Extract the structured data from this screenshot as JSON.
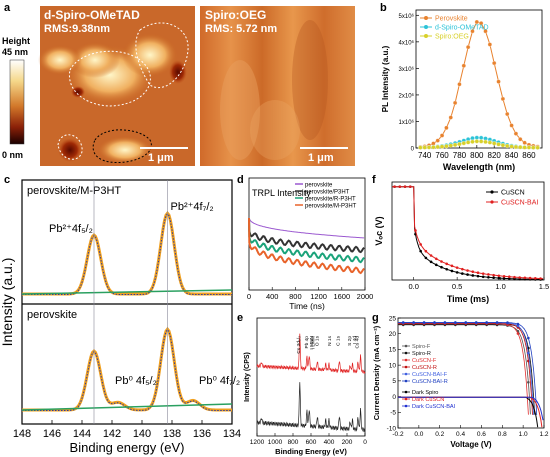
{
  "panels": {
    "a": {
      "label": "a",
      "left_title": "d-Spiro-OMeTAD",
      "left_rms": "RMS:9.38nm",
      "right_title": "Spiro:OEG",
      "right_rms": "RMS: 5.72 nm",
      "scale_left": "1 μm",
      "scale_right": "1 μm",
      "colorbar_title": "Height",
      "colorbar_max": "45 nm",
      "colorbar_min": "0 nm"
    },
    "b": {
      "label": "b"
    },
    "c": {
      "label": "c",
      "top_title": "perovskite/M-P3HT",
      "bottom_title": "perovskite"
    },
    "d": {
      "label": "d"
    },
    "e": {
      "label": "e"
    },
    "f": {
      "label": "f"
    },
    "g": {
      "label": "g"
    }
  },
  "chart_data": [
    {
      "id": "b",
      "type": "line",
      "xlabel": "Wavelength (nm)",
      "ylabel": "PL Intensity (a.u.)",
      "xlim": [
        730,
        875
      ],
      "ylim": [
        0,
        5200000
      ],
      "xticks": [
        740,
        760,
        780,
        800,
        820,
        840,
        860
      ],
      "yticks": [
        0,
        1000000,
        2000000,
        3000000,
        4000000,
        5000000
      ],
      "ytick_labels": [
        "0",
        "1x10⁶",
        "2x10⁶",
        "3x10⁶",
        "4x10⁶",
        "5x10⁶"
      ],
      "legend": "top-left",
      "x": [
        735,
        740,
        745,
        750,
        755,
        760,
        765,
        770,
        775,
        780,
        785,
        790,
        795,
        800,
        805,
        810,
        815,
        820,
        825,
        830,
        835,
        840,
        845,
        850,
        855,
        860,
        865,
        870
      ],
      "series": [
        {
          "name": "Perovskite",
          "color": "#e8822e",
          "values": [
            40000,
            60000,
            100000,
            170000,
            280000,
            470000,
            760000,
            1150000,
            1700000,
            2400000,
            3100000,
            3800000,
            4400000,
            4750000,
            4700000,
            4400000,
            3900000,
            3200000,
            2500000,
            1850000,
            1280000,
            850000,
            540000,
            330000,
            200000,
            120000,
            80000,
            50000
          ]
        },
        {
          "name": "d-Spiro-OMeTAD",
          "color": "#2cc3d8",
          "values": [
            20000,
            25000,
            30000,
            40000,
            55000,
            75000,
            105000,
            140000,
            185000,
            230000,
            280000,
            330000,
            370000,
            390000,
            385000,
            360000,
            320000,
            270000,
            215000,
            165000,
            120000,
            85000,
            60000,
            40000,
            30000,
            22000,
            18000,
            15000
          ]
        },
        {
          "name": "Spiro:OEG",
          "color": "#d8d02a",
          "values": [
            15000,
            18000,
            22000,
            28000,
            38000,
            50000,
            68000,
            90000,
            118000,
            148000,
            180000,
            210000,
            235000,
            250000,
            247000,
            230000,
            205000,
            172000,
            138000,
            105000,
            78000,
            55000,
            40000,
            28000,
            21000,
            17000,
            14000,
            12000
          ]
        }
      ]
    },
    {
      "id": "c",
      "type": "line",
      "xlabel": "Binding energy (eV)",
      "ylabel": "Intensity (a.u.)",
      "xlim": [
        148,
        134
      ],
      "xticks": [
        148,
        146,
        144,
        142,
        140,
        138,
        136,
        134
      ],
      "top_peak_labels": [
        "Pb²⁺4f₅/₂",
        "Pb²⁺4f₇/₂"
      ],
      "bottom_peak_labels": [
        "Pb⁰ 4f₅/₂",
        "Pb⁰ 4f₇/₂"
      ],
      "top_peaks_ev": [
        143.2,
        138.3
      ],
      "bottom_peaks_ev": [
        143.2,
        138.3
      ],
      "bottom_metal_peaks_ev": [
        141.6,
        136.6
      ]
    },
    {
      "id": "d",
      "type": "line",
      "xlabel": "Time (ns)",
      "ylabel": "TRPL Intensity",
      "xlim": [
        0,
        2000
      ],
      "xticks": [
        0,
        400,
        800,
        1200,
        1600,
        2000
      ],
      "legend": "top-right",
      "series": [
        {
          "name": "perovskite",
          "color": "#9b59d0"
        },
        {
          "name": "perovskite/P3HT",
          "color": "#333333"
        },
        {
          "name": "perovskite/R-P3HT",
          "color": "#1aa37a"
        },
        {
          "name": "perovskite/M-P3HT",
          "color": "#e8632a"
        }
      ]
    },
    {
      "id": "e",
      "type": "line",
      "xlabel": "Binding Energy (eV)",
      "ylabel": "Intensity (CPS)",
      "xlim": [
        1200,
        0
      ],
      "xticks": [
        1200,
        1000,
        800,
        600,
        400,
        200,
        0
      ],
      "peak_labels": [
        "Cs 3d₅/₂",
        "Pb 4p",
        "I MNN",
        "I LMM",
        "O 1s",
        "N 1s",
        "C 1s",
        "S 2p",
        "I 4d",
        "Cs 4d"
      ]
    },
    {
      "id": "f",
      "type": "line",
      "xlabel": "Time (ms)",
      "ylabel": "Vₒc (V)",
      "xlim": [
        -0.25,
        1.5
      ],
      "ylim": [
        0,
        1.05
      ],
      "xticks": [
        0.0,
        0.5,
        1.0,
        1.5
      ],
      "legend": "top-right",
      "series": [
        {
          "name": "CuSCN",
          "color": "#000000"
        },
        {
          "name": "CuSCN-BAI",
          "color": "#e02020"
        }
      ]
    },
    {
      "id": "g",
      "type": "line",
      "xlabel": "Voltage (V)",
      "ylabel": "Current Density (mA cm⁻²)",
      "xlim": [
        -0.2,
        1.2
      ],
      "ylim": [
        -10,
        25
      ],
      "xticks": [
        -0.2,
        0.0,
        0.2,
        0.4,
        0.6,
        0.8,
        1.0,
        1.2
      ],
      "yticks": [
        -10,
        -5,
        0,
        5,
        10,
        15,
        20,
        25
      ],
      "legend": "left",
      "series": [
        {
          "name": "Spiro-F",
          "color": "#555555"
        },
        {
          "name": "Spiro-R",
          "color": "#111111"
        },
        {
          "name": "CuSCN-F",
          "color": "#e03030"
        },
        {
          "name": "CuSCN-R",
          "color": "#c01010"
        },
        {
          "name": "CuSCN-BAI-F",
          "color": "#4060e0"
        },
        {
          "name": "CuSCN-BAI-R",
          "color": "#2040c0"
        },
        {
          "name": "Dark Spiro",
          "color": "#000000"
        },
        {
          "name": "Dark CuSCN",
          "color": "#e02020"
        },
        {
          "name": "Dark CuSCN-BAI",
          "color": "#2030d0"
        }
      ]
    }
  ]
}
